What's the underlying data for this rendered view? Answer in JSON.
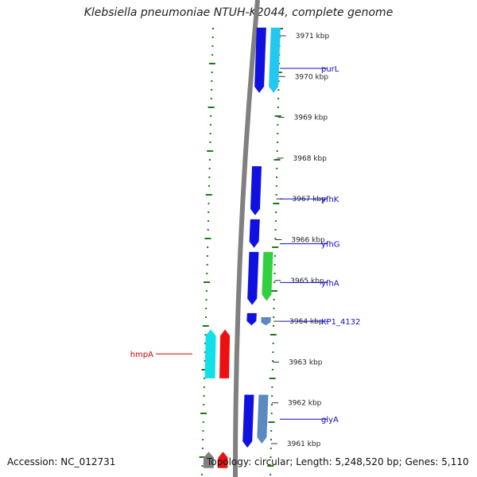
{
  "title": "Klebsiella pneumoniae NTUH-K2044, complete genome",
  "footer": {
    "accession": "Accession: NC_012731",
    "summary": "Topology: circular; Length: 5,248,520 bp; Genes: 5,110"
  },
  "map": {
    "kbp_min": 3960.6,
    "kbp_max": 3971.2,
    "ticks": [
      {
        "kbp": 3971,
        "label": "3971 kbp"
      },
      {
        "kbp": 3970,
        "label": "3970 kbp"
      },
      {
        "kbp": 3969,
        "label": "3969 kbp"
      },
      {
        "kbp": 3968,
        "label": "3968 kbp"
      },
      {
        "kbp": 3967,
        "label": "3967 kbp"
      },
      {
        "kbp": 3966,
        "label": "3966 kbp"
      },
      {
        "kbp": 3965,
        "label": "3965 kbp"
      },
      {
        "kbp": 3964,
        "label": "3964 kbp"
      },
      {
        "kbp": 3963,
        "label": "3963 kbp"
      },
      {
        "kbp": 3962,
        "label": "3962 kbp"
      },
      {
        "kbp": 3961,
        "label": "3961 kbp"
      }
    ],
    "colors": {
      "backbone": "#808080",
      "cds_forward": "#1010e0",
      "cds_forward_light": "#22c8f0",
      "cds_steel": "#5a8ac0",
      "cds_green": "#30d040",
      "cds_reverse_cyan": "#10e0e8",
      "cds_reverse_red": "#ee1010",
      "dots": "#1a7a1a",
      "label_forward": "#1010c0",
      "label_reverse": "#cc0000"
    },
    "features": [
      {
        "track": "fwd_inner",
        "start": 3969.6,
        "end": 3971.2,
        "color": "#1010e0"
      },
      {
        "track": "fwd_outer",
        "start": 3969.6,
        "end": 3971.2,
        "color": "#22c8f0"
      },
      {
        "track": "fwd_inner",
        "start": 3966.6,
        "end": 3967.8,
        "color": "#1010e0"
      },
      {
        "track": "fwd_inner",
        "start": 3965.8,
        "end": 3966.5,
        "color": "#1010e0"
      },
      {
        "track": "fwd_inner",
        "start": 3964.4,
        "end": 3965.7,
        "color": "#1010e0"
      },
      {
        "track": "fwd_outer",
        "start": 3964.5,
        "end": 3965.7,
        "color": "#30d040"
      },
      {
        "track": "fwd_inner",
        "start": 3963.9,
        "end": 3964.2,
        "color": "#1010e0"
      },
      {
        "track": "fwd_outer",
        "start": 3963.9,
        "end": 3964.1,
        "color": "#5a8ac0"
      },
      {
        "track": "fwd_inner",
        "start": 3960.9,
        "end": 3962.2,
        "color": "#1010e0"
      },
      {
        "track": "fwd_outer",
        "start": 3961.0,
        "end": 3962.2,
        "color": "#5a8ac0"
      },
      {
        "track": "rev_outer",
        "start": 3962.6,
        "end": 3963.8,
        "color": "#10e0e8"
      },
      {
        "track": "rev_inner",
        "start": 3962.6,
        "end": 3963.8,
        "color": "#ee1010"
      },
      {
        "track": "rev_outer",
        "start": 3960.4,
        "end": 3960.8,
        "color": "#808080"
      },
      {
        "track": "rev_inner",
        "start": 3960.4,
        "end": 3960.8,
        "color": "#ee1010"
      }
    ],
    "labels": [
      {
        "text": "purL",
        "kbp": 3970.2,
        "side": "right"
      },
      {
        "text": "yfhK",
        "kbp": 3967.0,
        "side": "right"
      },
      {
        "text": "yfhG",
        "kbp": 3965.9,
        "side": "right"
      },
      {
        "text": "yfhA",
        "kbp": 3964.95,
        "side": "right"
      },
      {
        "text": "KP1_4132",
        "kbp": 3964.0,
        "side": "right"
      },
      {
        "text": "glyA",
        "kbp": 3961.6,
        "side": "right"
      },
      {
        "text": "hmpA",
        "kbp": 3963.2,
        "side": "left"
      }
    ]
  }
}
